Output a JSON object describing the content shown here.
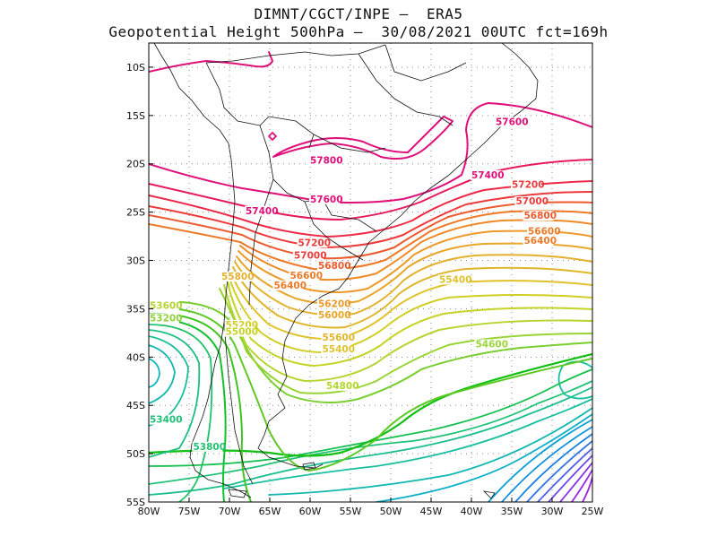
{
  "header": {
    "line1": "DIMNT/CGCT/INPE –  ERA5",
    "line2": "Geopotential Height 500hPa –  30/08/2021 00UTC fct=169h"
  },
  "axes": {
    "lat_labels": [
      "10S",
      "15S",
      "20S",
      "25S",
      "30S",
      "35S",
      "40S",
      "45S",
      "50S",
      "55S"
    ],
    "lon_labels": [
      "80W",
      "75W",
      "70W",
      "65W",
      "60W",
      "55W",
      "50W",
      "45W",
      "40W",
      "35W",
      "30W",
      "25W"
    ]
  },
  "map": {
    "lon_range": [
      -80,
      -25
    ],
    "lat_range": [
      -55,
      -7.5
    ],
    "grid": "dotted",
    "coastline_color": "#000000"
  },
  "contour_labels": [
    {
      "text": "57600",
      "lon": -37,
      "lat": -16,
      "color": "#e0107a"
    },
    {
      "text": "57800",
      "lon": -60,
      "lat": -20,
      "color": "#e0107a"
    },
    {
      "text": "57600",
      "lon": -60,
      "lat": -24,
      "color": "#e0107a"
    },
    {
      "text": "57400",
      "lon": -40,
      "lat": -21.5,
      "color": "#e0107a"
    },
    {
      "text": "57400",
      "lon": -68,
      "lat": -25.2,
      "color": "#e0107a"
    },
    {
      "text": "57200",
      "lon": -35,
      "lat": -22.5,
      "color": "#ee3a3a"
    },
    {
      "text": "57000",
      "lon": -34.5,
      "lat": -24.2,
      "color": "#ee3a3a"
    },
    {
      "text": "56800",
      "lon": -33.5,
      "lat": -25.7,
      "color": "#ec5a2e"
    },
    {
      "text": "56600",
      "lon": -33,
      "lat": -27.3,
      "color": "#ee7a28"
    },
    {
      "text": "56400",
      "lon": -33.5,
      "lat": -28.3,
      "color": "#ee7a28"
    },
    {
      "text": "57200",
      "lon": -61.5,
      "lat": -28.5,
      "color": "#ee3a3a"
    },
    {
      "text": "57000",
      "lon": -62,
      "lat": -29.8,
      "color": "#ee3a3a"
    },
    {
      "text": "56800",
      "lon": -59,
      "lat": -30.9,
      "color": "#ec5a2e"
    },
    {
      "text": "56600",
      "lon": -62.5,
      "lat": -31.9,
      "color": "#ee7a28"
    },
    {
      "text": "55800",
      "lon": -71,
      "lat": -32,
      "color": "#e3b12c"
    },
    {
      "text": "56400",
      "lon": -64.5,
      "lat": -32.9,
      "color": "#ee7a28"
    },
    {
      "text": "55400",
      "lon": -44,
      "lat": -32.3,
      "color": "#e0c22a"
    },
    {
      "text": "56200",
      "lon": -59,
      "lat": -34.8,
      "color": "#ee9a2a"
    },
    {
      "text": "56000",
      "lon": -59,
      "lat": -36,
      "color": "#e8a62a"
    },
    {
      "text": "55200",
      "lon": -70.5,
      "lat": -37,
      "color": "#d0cf25"
    },
    {
      "text": "55000",
      "lon": -70.5,
      "lat": -37.7,
      "color": "#c5d325"
    },
    {
      "text": "55600",
      "lon": -58.5,
      "lat": -38.3,
      "color": "#dfb52a"
    },
    {
      "text": "55400",
      "lon": -58.5,
      "lat": -39.5,
      "color": "#e0c22a"
    },
    {
      "text": "54600",
      "lon": -39.5,
      "lat": -39,
      "color": "#9bd63a"
    },
    {
      "text": "54800",
      "lon": -58,
      "lat": -43.3,
      "color": "#b5d530"
    },
    {
      "text": "53600",
      "lon": -81,
      "lat": -35,
      "color": "#b3d532"
    },
    {
      "text": "53200",
      "lon": -81,
      "lat": -36.3,
      "color": "#8fd23c"
    },
    {
      "text": "53400",
      "lon": -80.5,
      "lat": -46.8,
      "color": "#1fc07a"
    },
    {
      "text": "53800",
      "lon": -74.5,
      "lat": -49.6,
      "color": "#22c270"
    }
  ],
  "palette": {
    "pink": "#e0107a",
    "red": "#ee3a3a",
    "orange": "#ee7a28",
    "yellow": "#e0c22a",
    "lime": "#9bd63a",
    "green": "#12c012",
    "teal": "#18c0a0",
    "blue": "#1a7fe6",
    "purple": "#a020e0"
  }
}
